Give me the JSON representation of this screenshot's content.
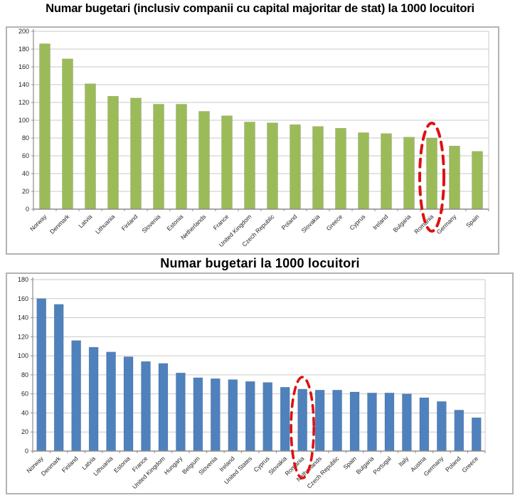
{
  "page_titles": {
    "chart1": "Numar bugetari (inclusiv companii cu capital majoritar de stat) la 1000 locuitori",
    "chart2": "Numar bugetari la 1000 locuitori"
  },
  "colors": {
    "green_bar": "#9bbb59",
    "blue_bar": "#4f81bd",
    "highlight_red": "#dd1212",
    "gridline": "#c9c9c9",
    "axis": "#8c8c8c",
    "label_text": "#1f1f1f",
    "panel_border": "#b3b3b3"
  },
  "chart_data": [
    {
      "type": "bar",
      "title": "Numar bugetari (inclusiv companii cu capital majoritar de stat) la 1000 locuitori",
      "categories": [
        "Norway",
        "Denmark",
        "Latvia",
        "Lithuania",
        "Finland",
        "Slovenia",
        "Estonia",
        "Netherlands",
        "France",
        "United Kingdom",
        "Czech Republic",
        "Poland",
        "Slovakia",
        "Greece",
        "Cyprus",
        "Ireland",
        "Bulgaria",
        "Romania",
        "Germany",
        "Spain"
      ],
      "values": [
        186,
        169,
        141,
        127,
        125,
        118,
        118,
        110,
        105,
        98,
        97,
        95,
        93,
        91,
        86,
        85,
        81,
        80,
        71,
        65
      ],
      "ylim": [
        0,
        200
      ],
      "ytick_step": 20,
      "ytick_labels": [
        "0",
        "20",
        "40",
        "60",
        "80",
        "100",
        "120",
        "140",
        "160",
        "180",
        "200"
      ],
      "bar_color": "#9bbb59",
      "grid": true,
      "legend": false,
      "xlabel": "",
      "ylabel": "",
      "highlight": {
        "category": "Romania",
        "shape": "dashed-ellipse",
        "color": "#dd1212"
      }
    },
    {
      "type": "bar",
      "title": "Numar bugetari la 1000 locuitori",
      "categories": [
        "Norway",
        "Denmark",
        "Finland",
        "Latvia",
        "Lithuania",
        "Estonia",
        "France",
        "United Kingdom",
        "Hungary",
        "Belgium",
        "Slovenia",
        "Ireland",
        "United States",
        "Cyprus",
        "Slovakia",
        "Romania",
        "Netherlands",
        "Czech Republic",
        "Spain",
        "Bulgaria",
        "Portugal",
        "Italy",
        "Austria",
        "Germany",
        "Poland",
        "Greece"
      ],
      "values": [
        160,
        154,
        116,
        109,
        104,
        99,
        94,
        92,
        82,
        77,
        76,
        75,
        73,
        72,
        67,
        65,
        64,
        64,
        62,
        61,
        61,
        60,
        56,
        52,
        43,
        35
      ],
      "ylim": [
        0,
        180
      ],
      "ytick_step": 20,
      "ytick_labels": [
        "0",
        "20",
        "40",
        "60",
        "80",
        "100",
        "120",
        "140",
        "160",
        "180"
      ],
      "bar_color": "#4f81bd",
      "grid": true,
      "legend": false,
      "xlabel": "",
      "ylabel": "",
      "highlight": {
        "category": "Romania",
        "shape": "dashed-ellipse",
        "color": "#dd1212"
      }
    }
  ]
}
